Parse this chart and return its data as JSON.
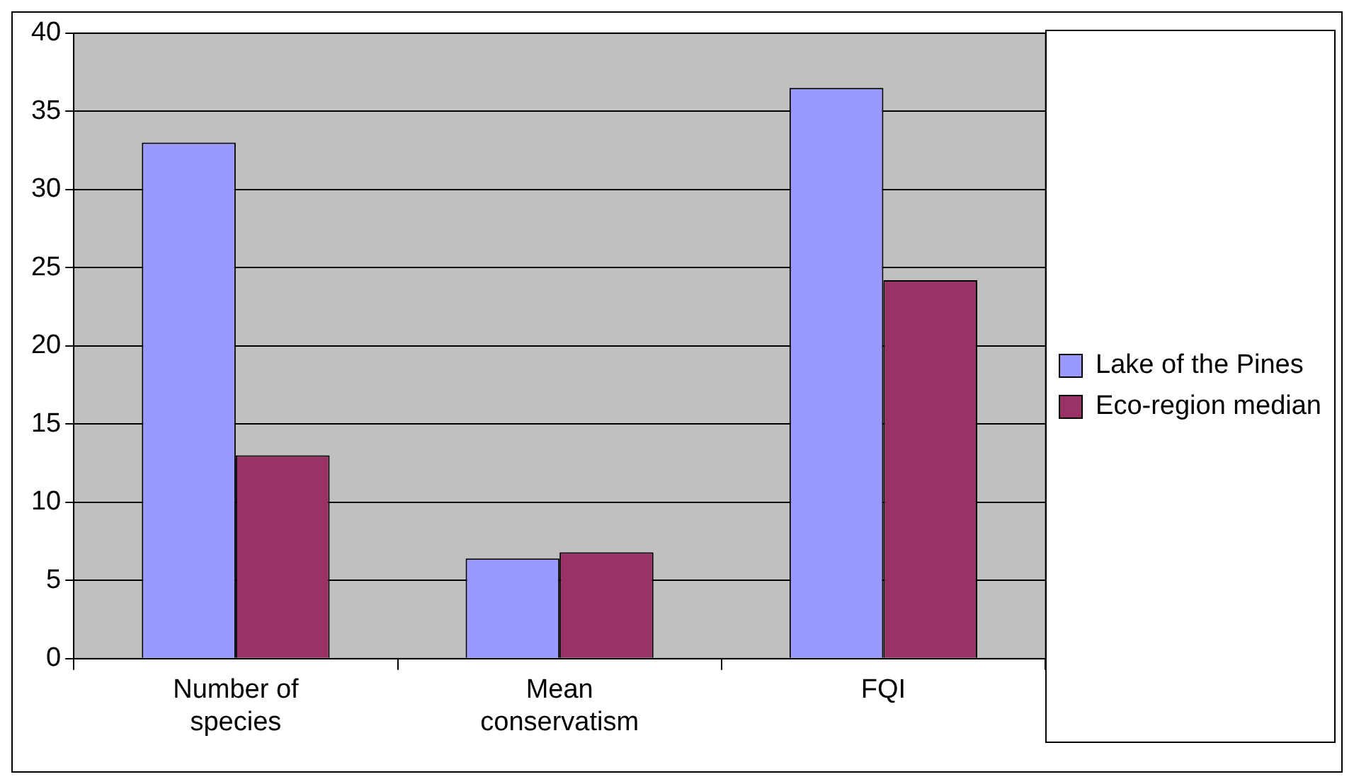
{
  "chart_data": {
    "type": "bar",
    "categories": [
      "Number of species",
      "Mean conservatism",
      "FQI"
    ],
    "series": [
      {
        "name": "Lake of the Pines",
        "color": "#9999ff",
        "values": [
          33,
          6.4,
          36.5
        ]
      },
      {
        "name": "Eco-region median",
        "color": "#993366",
        "values": [
          13,
          6.8,
          24.2
        ]
      }
    ],
    "ylim": [
      0,
      40
    ],
    "yticks": [
      0,
      5,
      10,
      15,
      20,
      25,
      30,
      35,
      40
    ],
    "grid": "y",
    "legend": "right"
  }
}
